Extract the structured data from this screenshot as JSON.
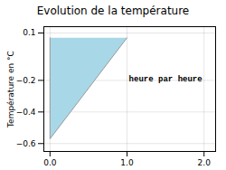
{
  "chart_data": {
    "type": "area",
    "title": "Evolution de la température",
    "ylabel": "Température en °C",
    "x": [
      0,
      0,
      1
    ],
    "series": [
      {
        "type": "area",
        "color": "#a8d8e8",
        "values": [
          0.07,
          -0.57,
          0.07
        ]
      },
      {
        "type": "line",
        "color": "#999999",
        "values": [
          0.07,
          -0.57,
          0.07
        ]
      }
    ],
    "xlim": [
      -0.08,
      2.15
    ],
    "ylim": [
      -0.65,
      0.14
    ],
    "xticks": [
      0,
      1,
      2
    ],
    "yticks": [
      0.1,
      -0.2,
      -0.4,
      -0.6
    ],
    "grid": true,
    "annotations": [
      {
        "text": "heure par heure",
        "x": 1.5,
        "y": -0.19
      }
    ]
  }
}
